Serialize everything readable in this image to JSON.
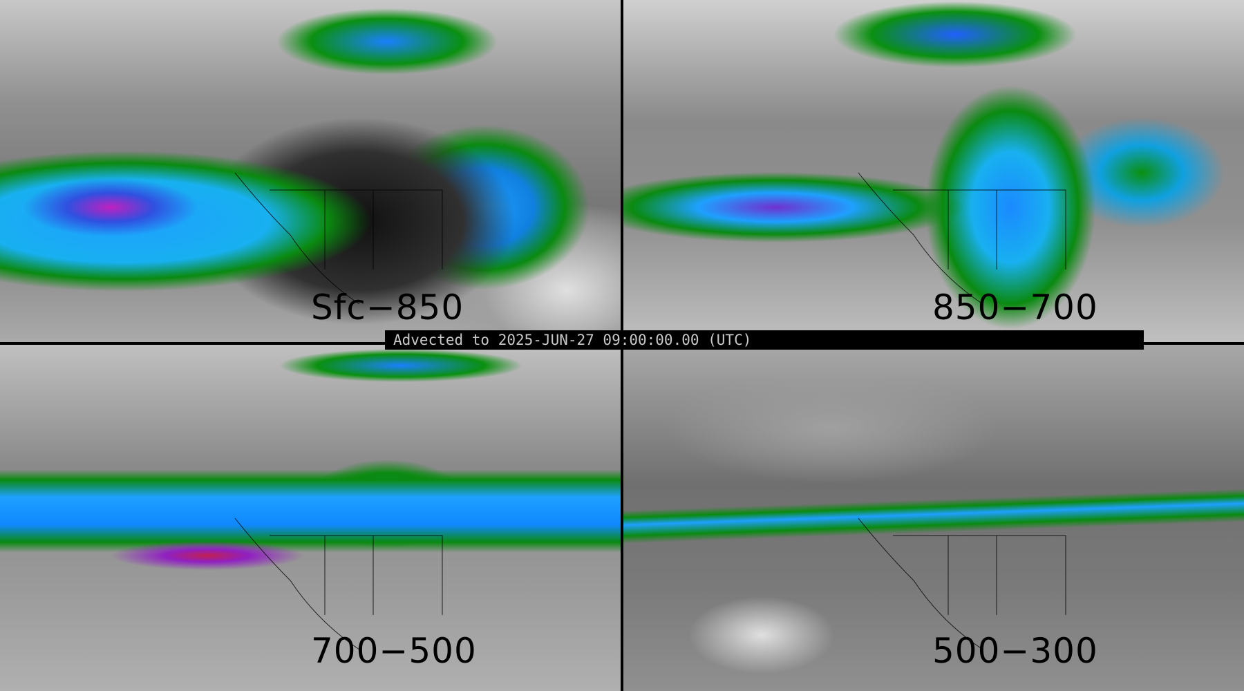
{
  "banner": "Advected to 2025-JUN-27 09:00:00.00 (UTC)",
  "panels": [
    {
      "label": "Sfc−850"
    },
    {
      "label": "850−700"
    },
    {
      "label": "700−500"
    },
    {
      "label": "500−300"
    }
  ],
  "colors": {
    "background": "#000000",
    "low": "#0a8a10",
    "mid": "#1ea0ff",
    "high": "#c020c0",
    "max": "#c02050",
    "base": "#8a8a8a"
  }
}
